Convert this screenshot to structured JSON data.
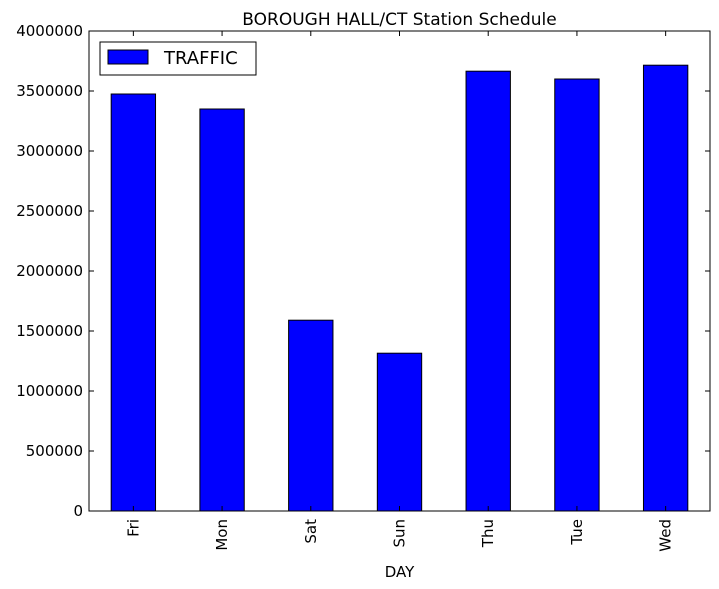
{
  "chart_data": {
    "type": "bar",
    "title": "BOROUGH HALL/CT Station Schedule",
    "xlabel": "DAY",
    "ylabel": "",
    "categories": [
      "Fri",
      "Mon",
      "Sat",
      "Sun",
      "Thu",
      "Tue",
      "Wed"
    ],
    "series": [
      {
        "name": "TRAFFIC",
        "color": "#0000ff",
        "values": [
          3475000,
          3350000,
          1590000,
          1315000,
          3665000,
          3600000,
          3715000
        ]
      }
    ],
    "ylim": [
      0,
      4000000
    ],
    "yticks": [
      0,
      500000,
      1000000,
      1500000,
      2000000,
      2500000,
      3000000,
      3500000,
      4000000
    ],
    "ytick_labels": [
      "0",
      "500000",
      "1000000",
      "1500000",
      "2000000",
      "2500000",
      "3000000",
      "3500000",
      "4000000"
    ],
    "grid": false,
    "legend_position": "top-left"
  }
}
